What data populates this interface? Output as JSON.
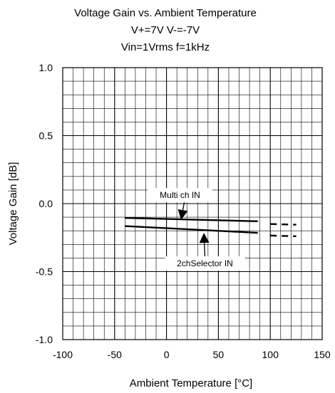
{
  "chart_data": {
    "type": "line",
    "title": "Voltage Gain vs. Ambient Temperature",
    "subtitle_lines": [
      "V+=7V V-=-7V",
      "Vin=1Vrms f=1kHz"
    ],
    "xlabel": "Ambient Temperature [°C]",
    "ylabel": "Voltage Gain [dB]",
    "xlim": [
      -100,
      150
    ],
    "ylim": [
      -1.0,
      1.0
    ],
    "x_ticks": [
      -100,
      -50,
      0,
      50,
      100,
      150
    ],
    "x_tick_labels": [
      "-100",
      "-50",
      "0",
      "50",
      "100",
      "150"
    ],
    "y_ticks": [
      -1.0,
      -0.5,
      0.0,
      0.5,
      1.0
    ],
    "y_tick_labels": [
      "-1.0",
      "-0.5",
      "0.0",
      "0.5",
      "1.0"
    ],
    "grid": true,
    "minor_grid_x_step": 10,
    "minor_grid_y_step": 0.1,
    "series": [
      {
        "name": "Multi ch IN",
        "x": [
          -40,
          88
        ],
        "y": [
          -0.105,
          -0.13
        ],
        "dashed_x": [
          100,
          125
        ],
        "dashed_y": [
          -0.15,
          -0.155
        ],
        "color": "#000000"
      },
      {
        "name": "2chSelector IN",
        "x": [
          -40,
          88
        ],
        "y": [
          -0.165,
          -0.215
        ],
        "dashed_x": [
          100,
          125
        ],
        "dashed_y": [
          -0.235,
          -0.24
        ],
        "color": "#000000"
      }
    ],
    "annotations": [
      {
        "text": "Multi ch IN",
        "box_center": [
          13,
          0.062
        ],
        "arrow_to": [
          14,
          -0.12
        ]
      },
      {
        "text": "2chSelector IN",
        "box_center": [
          37,
          -0.44
        ],
        "arrow_to": [
          36,
          -0.215
        ]
      }
    ]
  }
}
